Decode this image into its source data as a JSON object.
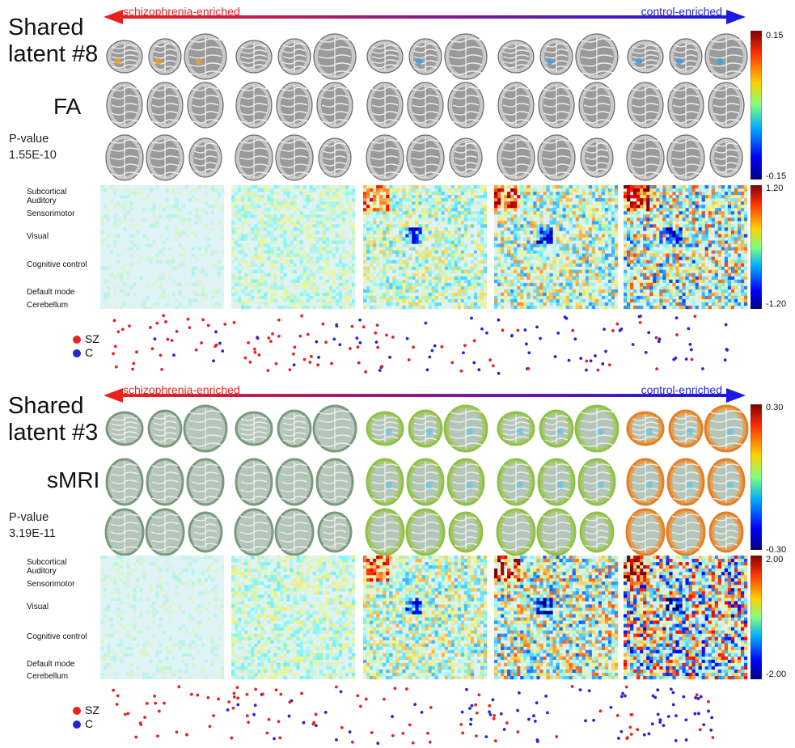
{
  "arrow": {
    "left_label": "schizophrenia-enriched",
    "right_label": "control-enriched",
    "left_color": "#e8231f",
    "right_color": "#2424d8"
  },
  "panels": [
    {
      "title_line1": "Shared",
      "title_line2": "latent #8",
      "modality": "FA",
      "pvalue_label": "P-value",
      "pvalue": "1.55E-10",
      "brain_colorbar": {
        "max_label": "0.15",
        "min_label": "-0.15"
      },
      "matrix_colorbar": {
        "max_label": "1.20",
        "min_label": "-1.20"
      },
      "networks": [
        "Subcortical",
        "Auditory",
        "Sensorimotor",
        "Visual",
        "Cognitive control",
        "Default mode",
        "Cerebellum"
      ],
      "legend": {
        "sz_label": "SZ",
        "c_label": "C",
        "sz_color": "#e8231f",
        "c_color": "#2424d8"
      }
    },
    {
      "title_line1": "Shared",
      "title_line2": "latent #3",
      "modality": "sMRI",
      "pvalue_label": "P-value",
      "pvalue": "3.19E-11",
      "brain_colorbar": {
        "max_label": "0.30",
        "min_label": "-0.30"
      },
      "matrix_colorbar": {
        "max_label": "2.00",
        "min_label": "-2.00"
      },
      "networks": [
        "Subcortical",
        "Auditory",
        "Sensorimotor",
        "Visual",
        "Cognitive control",
        "Default mode",
        "Cerebellum"
      ],
      "legend": {
        "sz_label": "SZ",
        "c_label": "C",
        "sz_color": "#e8231f",
        "c_color": "#2424d8"
      }
    }
  ]
}
